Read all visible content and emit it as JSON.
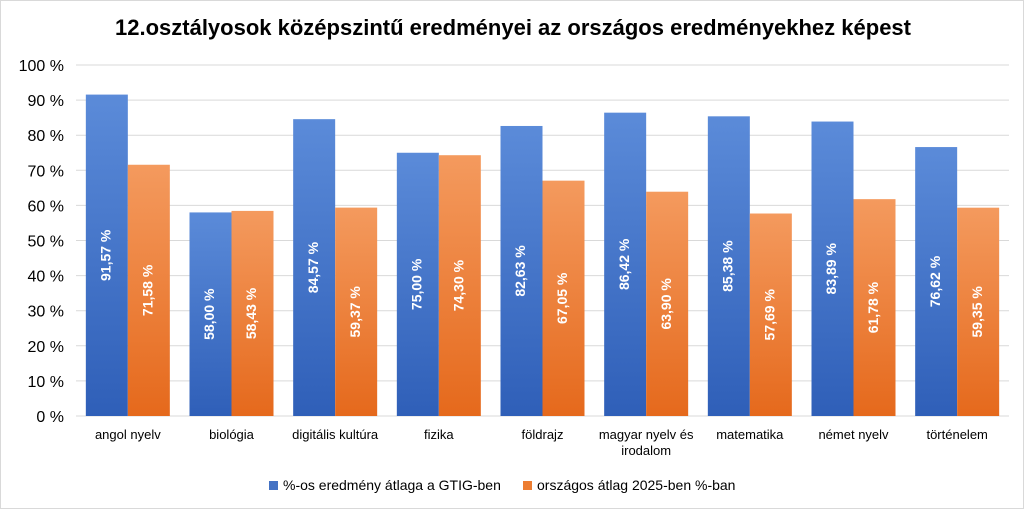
{
  "chart_data": {
    "type": "bar",
    "title": "12.osztályosok középszintű eredményei az országos eredményekhez képest",
    "categories": [
      [
        "angol nyelv"
      ],
      [
        "biológia"
      ],
      [
        "digitális kultúra"
      ],
      [
        "fizika"
      ],
      [
        "földrajz"
      ],
      [
        "magyar nyelv és",
        "irodalom"
      ],
      [
        "matematika"
      ],
      [
        "német nyelv"
      ],
      [
        "történelem"
      ]
    ],
    "series": [
      {
        "name": "%-os eredmény átlaga a GTIG-ben",
        "color": "#4472C4",
        "values": [
          91.57,
          58.0,
          84.57,
          75.0,
          82.63,
          86.42,
          85.38,
          83.89,
          76.62
        ],
        "labels": [
          "91,57 %",
          "58,00 %",
          "84,57 %",
          "75,00 %",
          "82,63 %",
          "86,42 %",
          "85,38 %",
          "83,89 %",
          "76,62 %"
        ]
      },
      {
        "name": "országos átlag 2025-ben %-ban",
        "color": "#ED7D31",
        "values": [
          71.58,
          58.43,
          59.37,
          74.3,
          67.05,
          63.9,
          57.69,
          61.78,
          59.35
        ],
        "labels": [
          "71,58 %",
          "58,43 %",
          "59,37 %",
          "74,30 %",
          "67,05 %",
          "63,90 %",
          "57,69 %",
          "61,78 %",
          "59,35 %"
        ]
      }
    ],
    "ylim": [
      0,
      100
    ],
    "yticks": [
      0,
      10,
      20,
      30,
      40,
      50,
      60,
      70,
      80,
      90,
      100
    ],
    "ytick_labels": [
      "0 %",
      "10 %",
      "20 %",
      "30 %",
      "40 %",
      "50 %",
      "60 %",
      "70 %",
      "80 %",
      "90 %",
      "100 %"
    ],
    "grid": true,
    "legend_position": "bottom"
  }
}
